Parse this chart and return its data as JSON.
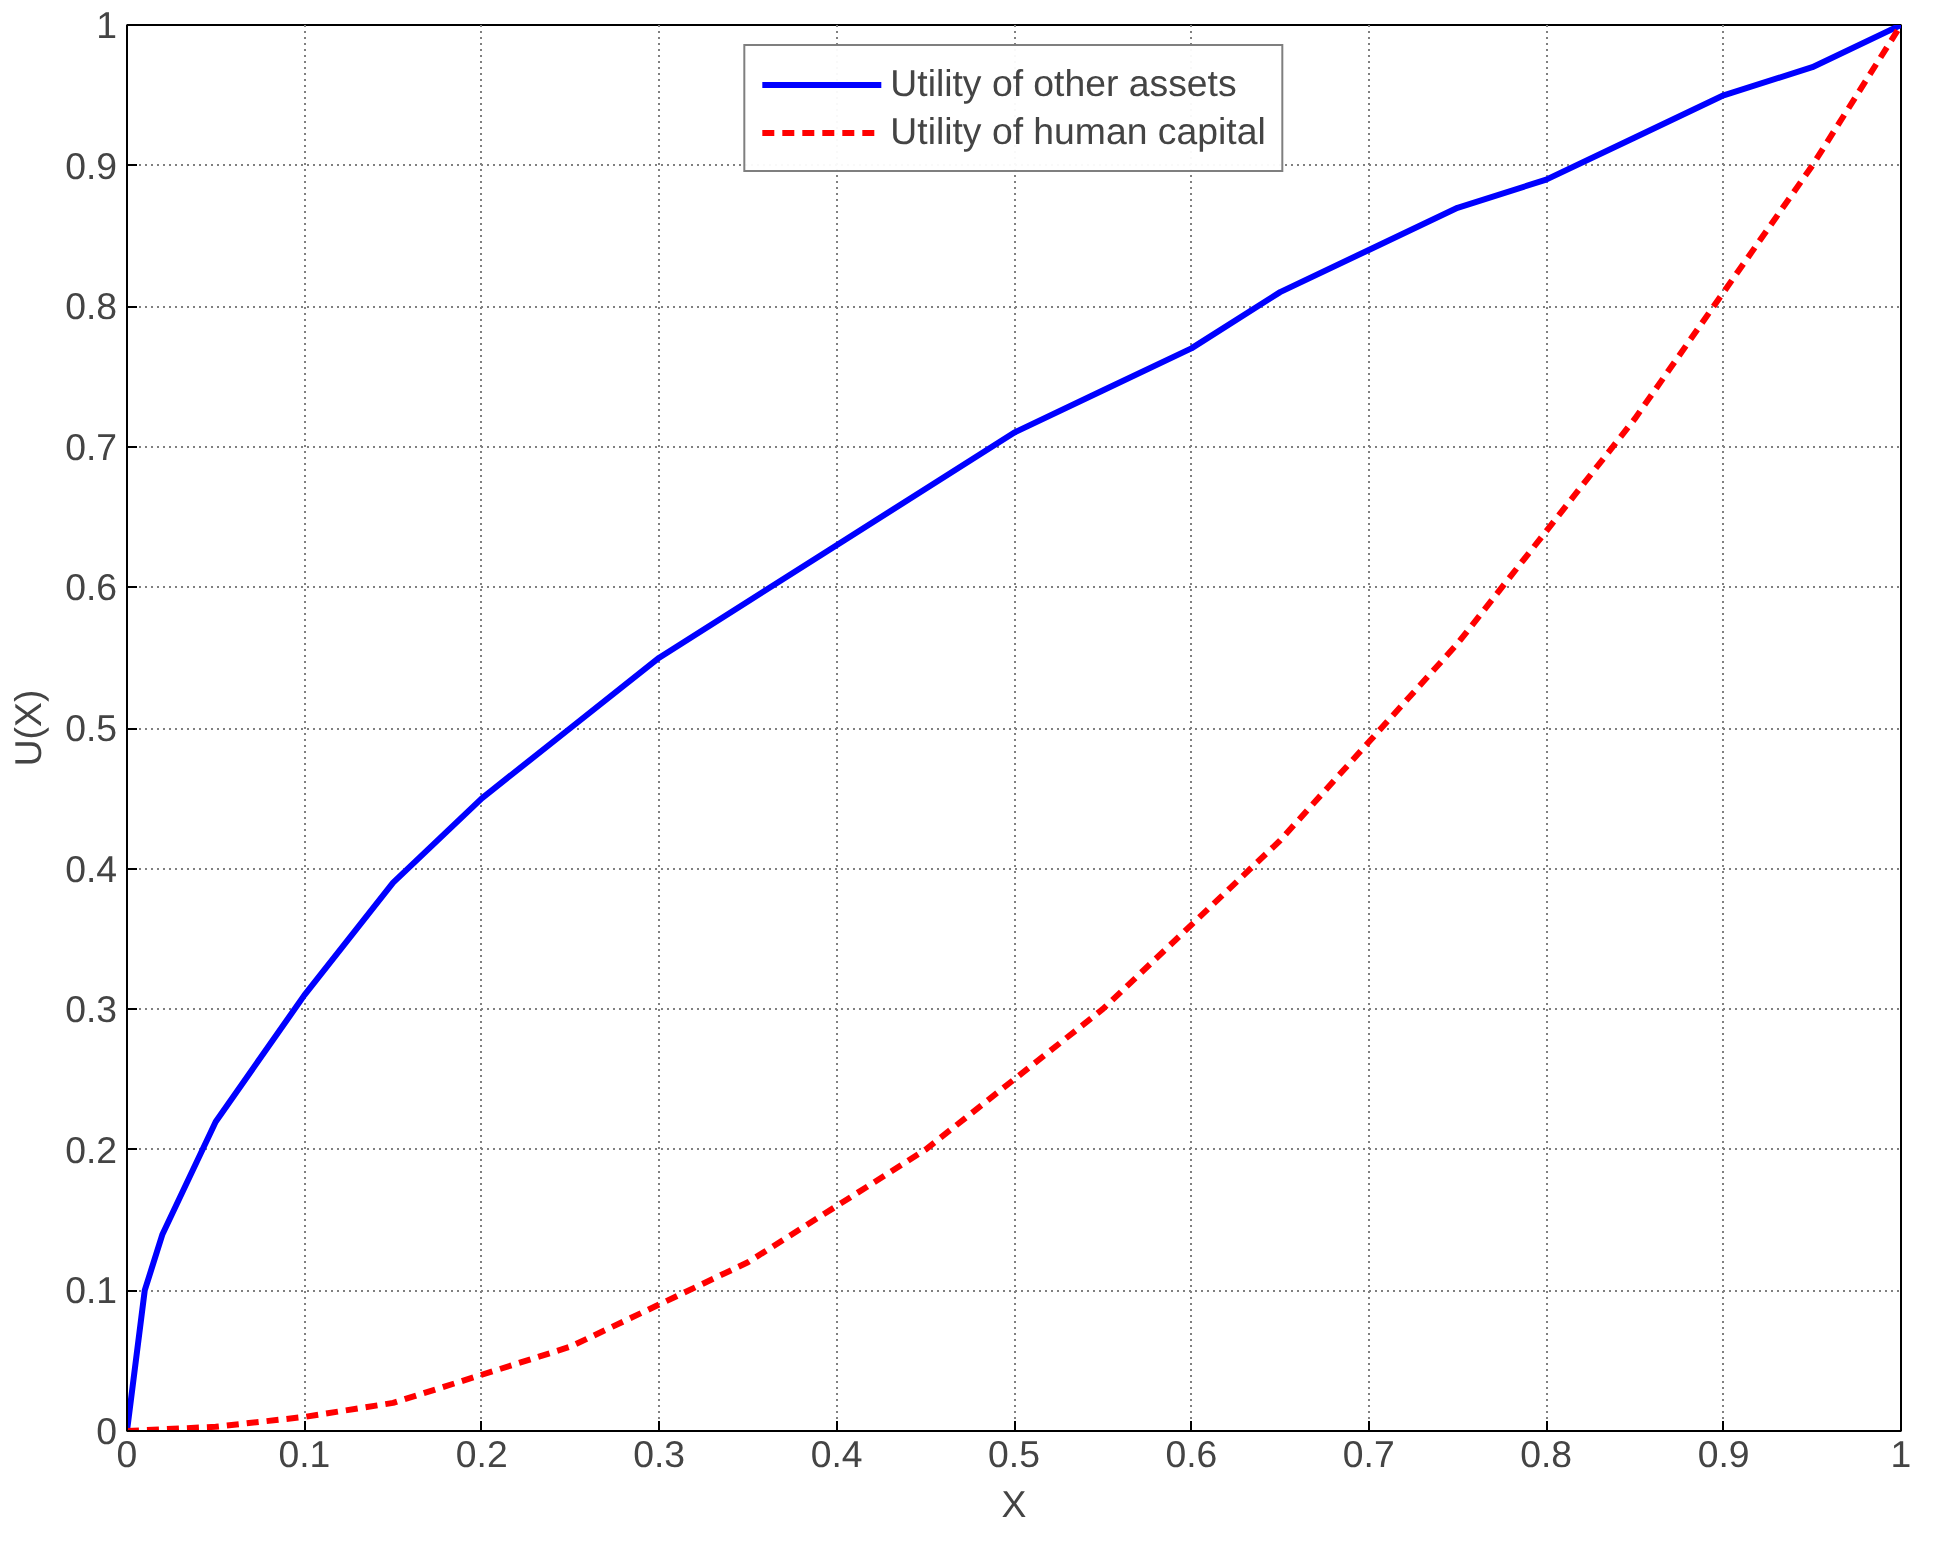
{
  "chart_data": {
    "type": "line",
    "xlabel": "X",
    "ylabel": "U(X)",
    "xlim": [
      0,
      1
    ],
    "ylim": [
      0,
      1
    ],
    "xticks": [
      0,
      0.1,
      0.2,
      0.3,
      0.4,
      0.5,
      0.6,
      0.7,
      0.8,
      0.9,
      1
    ],
    "yticks": [
      0,
      0.1,
      0.2,
      0.3,
      0.4,
      0.5,
      0.6,
      0.7,
      0.8,
      0.9,
      1
    ],
    "grid": true,
    "legend": "top",
    "series": [
      {
        "name": "Utility of other assets",
        "color": "#0000ff",
        "line_style": "solid",
        "x": [
          0,
          0.01,
          0.02,
          0.05,
          0.1,
          0.15,
          0.2,
          0.25,
          0.3,
          0.35,
          0.4,
          0.45,
          0.5,
          0.55,
          0.6,
          0.65,
          0.7,
          0.75,
          0.8,
          0.85,
          0.9,
          0.95,
          1
        ],
        "values": [
          0,
          0.1,
          0.14,
          0.22,
          0.31,
          0.39,
          0.45,
          0.5,
          0.55,
          0.59,
          0.63,
          0.67,
          0.71,
          0.74,
          0.77,
          0.81,
          0.84,
          0.87,
          0.89,
          0.92,
          0.95,
          0.97,
          1
        ]
      },
      {
        "name": "Utility of human capital",
        "color": "#ff0000",
        "line_style": "dashed",
        "x": [
          0,
          0.05,
          0.1,
          0.15,
          0.2,
          0.25,
          0.3,
          0.35,
          0.4,
          0.45,
          0.5,
          0.55,
          0.6,
          0.65,
          0.7,
          0.75,
          0.8,
          0.85,
          0.9,
          0.95,
          1
        ],
        "values": [
          0,
          0.003,
          0.01,
          0.02,
          0.04,
          0.06,
          0.09,
          0.12,
          0.16,
          0.2,
          0.25,
          0.3,
          0.36,
          0.42,
          0.49,
          0.56,
          0.64,
          0.72,
          0.81,
          0.9,
          1
        ]
      }
    ]
  }
}
